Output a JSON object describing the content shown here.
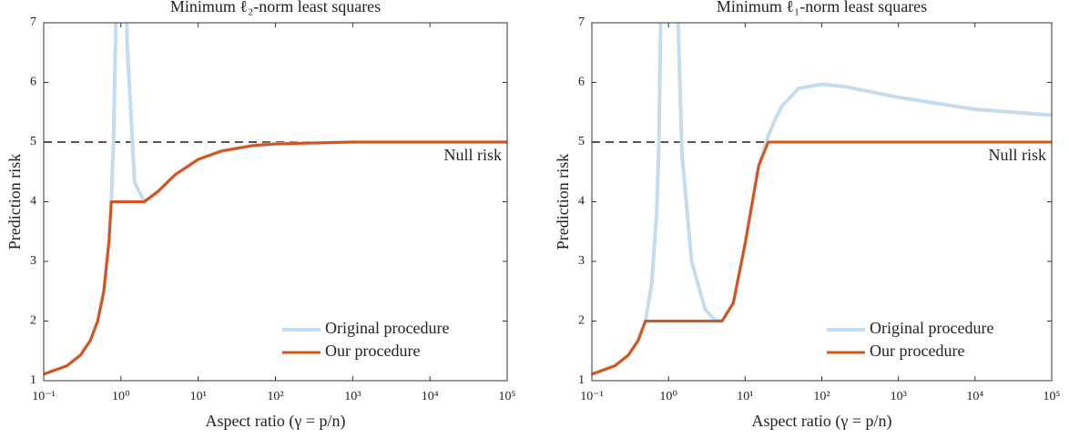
{
  "chart_data": [
    {
      "type": "line",
      "title": "Minimum ℓ₂-norm least squares",
      "x_label": "Aspect ratio (γ = p/n)",
      "y_label": "Prediction risk",
      "log_x": true,
      "legend": "lower right",
      "reference_line": {
        "value": 5,
        "label": "Null risk",
        "color": "#555555"
      },
      "x": [
        0.1,
        0.2,
        0.3,
        0.4,
        0.5,
        0.6,
        0.7,
        0.75,
        0.8,
        0.85,
        0.9,
        1,
        1.1,
        1.2,
        1.5,
        2,
        3,
        5,
        10,
        20,
        50,
        100,
        1000,
        10000,
        100000
      ],
      "series": [
        {
          "name": "Original procedure",
          "color": "#c3dcee",
          "values": [
            1.11,
            1.25,
            1.43,
            1.67,
            2,
            2.5,
            3.33,
            4,
            5,
            6.67,
            10,
            null,
            11.36,
            6.67,
            4.33,
            4,
            4.17,
            4.45,
            4.71,
            4.85,
            4.94,
            4.97,
            5,
            5,
            5
          ]
        },
        {
          "name": "Our procedure",
          "color": "#d95319",
          "values": [
            1.11,
            1.25,
            1.43,
            1.67,
            2,
            2.5,
            3.33,
            4,
            4,
            4,
            4,
            4,
            4,
            4,
            4,
            4,
            4.17,
            4.45,
            4.71,
            4.85,
            4.94,
            4.97,
            5,
            5,
            5
          ]
        }
      ],
      "xlim": [
        0.1,
        100000
      ],
      "xticks": [
        {
          "value": 0.1,
          "label": "10⁻¹"
        },
        {
          "value": 1,
          "label": "10⁰"
        },
        {
          "value": 10,
          "label": "10¹"
        },
        {
          "value": 100,
          "label": "10²"
        },
        {
          "value": 1000,
          "label": "10³"
        },
        {
          "value": 10000,
          "label": "10⁴"
        },
        {
          "value": 100000,
          "label": "10⁵"
        }
      ],
      "ylim": [
        1,
        7
      ],
      "yticks": [
        1,
        2,
        3,
        4,
        5,
        6,
        7
      ]
    },
    {
      "type": "line",
      "title": "Minimum ℓ₁-norm least squares",
      "x_label": "Aspect ratio (γ = p/n)",
      "y_label": "Prediction risk",
      "log_x": true,
      "legend": "lower right",
      "reference_line": {
        "value": 5,
        "label": "Null risk",
        "color": "#555555"
      },
      "x": [
        0.1,
        0.2,
        0.3,
        0.4,
        0.5,
        0.6,
        0.7,
        0.75,
        0.8,
        1,
        1.3,
        1.5,
        2,
        3,
        4,
        5,
        7,
        10,
        15,
        20,
        25,
        30,
        50,
        100,
        200,
        1000,
        10000,
        100000
      ],
      "series": [
        {
          "name": "Original procedure",
          "color": "#c3dcee",
          "values": [
            1.11,
            1.25,
            1.43,
            1.67,
            2,
            2.6,
            3.8,
            5,
            7.5,
            null,
            7.5,
            4.8,
            3,
            2.2,
            2.02,
            2,
            2.3,
            3.3,
            4.6,
            5.1,
            5.4,
            5.6,
            5.9,
            5.97,
            5.93,
            5.75,
            5.55,
            5.45
          ]
        },
        {
          "name": "Our procedure",
          "color": "#d95319",
          "values": [
            1.11,
            1.25,
            1.43,
            1.67,
            2,
            2,
            2,
            2,
            2,
            2,
            2,
            2,
            2,
            2,
            2,
            2,
            2.3,
            3.3,
            4.6,
            5,
            5,
            5,
            5,
            5,
            5,
            5,
            5,
            5
          ]
        }
      ],
      "xlim": [
        0.1,
        100000
      ],
      "xticks": [
        {
          "value": 0.1,
          "label": "10⁻¹"
        },
        {
          "value": 1,
          "label": "10⁰"
        },
        {
          "value": 10,
          "label": "10¹"
        },
        {
          "value": 100,
          "label": "10²"
        },
        {
          "value": 1000,
          "label": "10³"
        },
        {
          "value": 10000,
          "label": "10⁴"
        },
        {
          "value": 100000,
          "label": "10⁵"
        }
      ],
      "ylim": [
        1,
        7
      ],
      "yticks": [
        1,
        2,
        3,
        4,
        5,
        6,
        7
      ]
    }
  ]
}
